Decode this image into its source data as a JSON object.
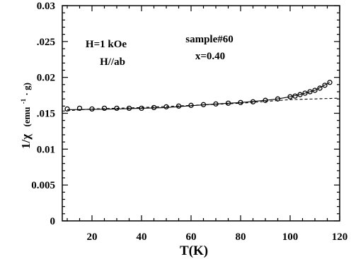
{
  "chart_data": {
    "type": "scatter",
    "xlabel": "T(K)",
    "ylabel_main": "1/χ",
    "ylabel_unit": "(emu",
    "ylabel_unit_sup": "-1",
    "ylabel_unit_end": "· g)",
    "xlim": [
      8,
      120
    ],
    "ylim": [
      0,
      0.03
    ],
    "x_ticks": [
      20,
      40,
      60,
      80,
      100,
      120
    ],
    "x_tick_labels": [
      "20",
      "40",
      "60",
      "80",
      "100",
      "120"
    ],
    "y_ticks": [
      0,
      0.005,
      0.01,
      0.015,
      0.02,
      0.025,
      0.03
    ],
    "y_tick_labels": [
      "0",
      "0.005",
      "0.01",
      ".015",
      "0.02",
      ".025",
      "0.03"
    ],
    "annotations": [
      "H=1 kOe",
      "H//ab",
      "sample#60",
      "x=0.40"
    ],
    "series": [
      {
        "style": "open-circle",
        "x": [
          10,
          15,
          20,
          25,
          30,
          35,
          40,
          45,
          50,
          55,
          60,
          65,
          70,
          75,
          80,
          85,
          90,
          95,
          100,
          102,
          104,
          106,
          108,
          110,
          112,
          114,
          116
        ],
        "y": [
          0.0156,
          0.0157,
          0.0156,
          0.0157,
          0.0157,
          0.0157,
          0.0157,
          0.0158,
          0.0159,
          0.016,
          0.0161,
          0.0162,
          0.0163,
          0.0164,
          0.0165,
          0.0166,
          0.0168,
          0.017,
          0.0173,
          0.0174,
          0.0176,
          0.0178,
          0.018,
          0.0182,
          0.0185,
          0.0189,
          0.0193
        ]
      },
      {
        "style": "solid-line",
        "x": [
          10,
          20,
          30,
          40,
          50,
          60,
          70,
          80,
          90,
          95,
          100,
          105,
          110,
          116
        ],
        "y": [
          0.0155,
          0.01555,
          0.0156,
          0.0157,
          0.0158,
          0.01605,
          0.0163,
          0.0165,
          0.0168,
          0.017,
          0.0173,
          0.0177,
          0.0182,
          0.0193
        ]
      },
      {
        "style": "dashed-line",
        "x": [
          8,
          20,
          40,
          60,
          80,
          100,
          120
        ],
        "y": [
          0.0153,
          0.0156,
          0.0158,
          0.0161,
          0.0164,
          0.0169,
          0.0171
        ]
      }
    ]
  }
}
